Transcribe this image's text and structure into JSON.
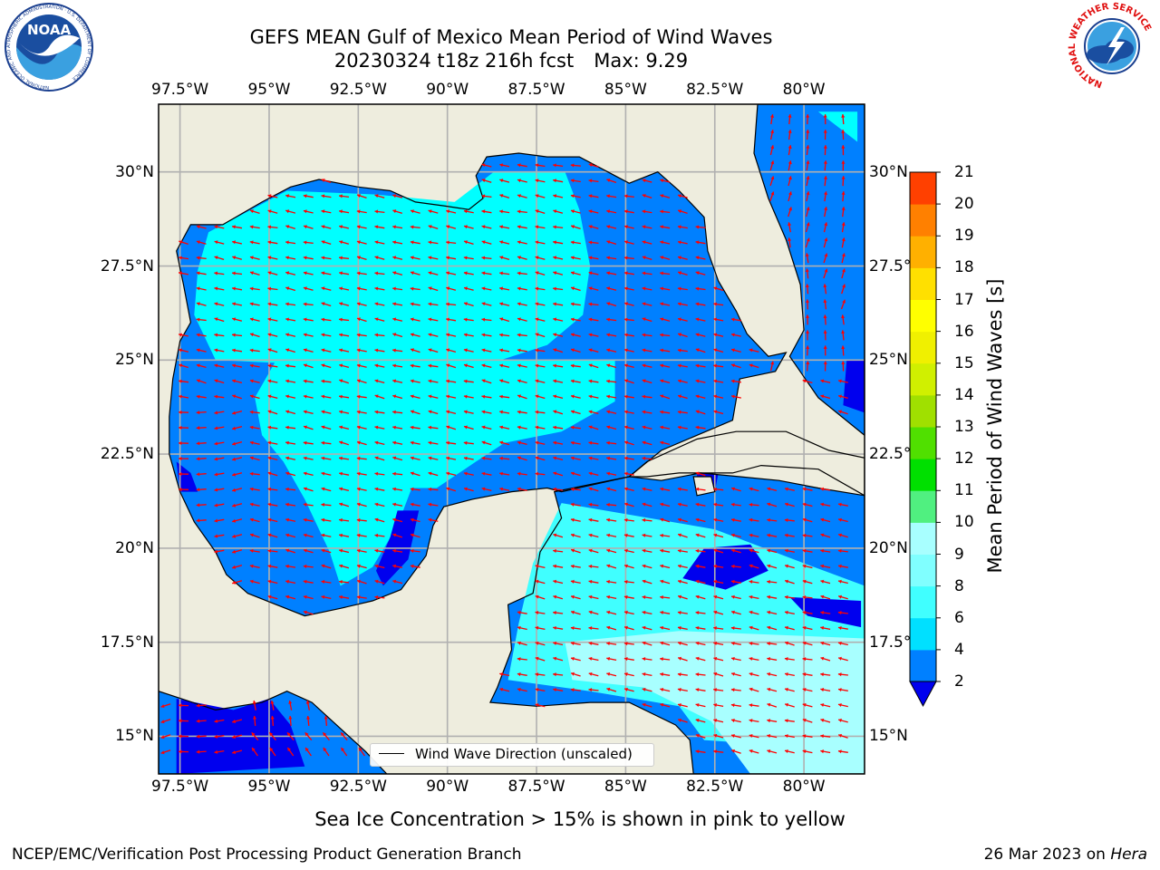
{
  "title": {
    "line1": "GEFS MEAN Gulf of Mexico Mean Period of Wind Waves",
    "line2_run": "20230324 t18z 216h fcst",
    "line2_max": "Max: 9.29"
  },
  "logos": {
    "left": {
      "name": "NOAA",
      "text": "NOAA",
      "ring_text": "NATIONAL OCEANIC AND ATMOSPHERIC ADMINISTRATION · U.S. DEPARTMENT OF COMMERCE"
    },
    "right": {
      "name": "National Weather Service",
      "ring_text": "NATIONAL WEATHER SERVICE"
    }
  },
  "map": {
    "longitude_ticks": [
      "97.5°W",
      "95°W",
      "92.5°W",
      "90°W",
      "87.5°W",
      "85°W",
      "82.5°W",
      "80°W"
    ],
    "latitude_ticks_left": [
      "30°N",
      "27.5°N",
      "25°N",
      "22.5°N",
      "20°N",
      "17.5°N",
      "15°N"
    ],
    "latitude_ticks_right": [
      "30°N",
      "27.5°N",
      "25°N",
      "22.5°N",
      "20°N",
      "17.5°N",
      "15°N"
    ],
    "legend_label": "Wind Wave Direction (unscaled)",
    "extent": {
      "lon_min": -98.1,
      "lon_max": -78.3,
      "lat_min": 14.0,
      "lat_max": 31.8
    },
    "colors": {
      "land": "#eeedde",
      "coast": "#000000",
      "grid": "#b0b0b0",
      "arrow": "#ff0000"
    }
  },
  "colorbar": {
    "label": "Mean Period of Wind Waves [s]",
    "levels": [
      "2",
      "4",
      "6",
      "8",
      "9",
      "10",
      "11",
      "12",
      "13",
      "14",
      "15",
      "16",
      "17",
      "18",
      "19",
      "20",
      "21"
    ],
    "colors": [
      "#0080ff",
      "#00e0ff",
      "#40ffff",
      "#80ffff",
      "#a8ffff",
      "#50f080",
      "#00e000",
      "#50e000",
      "#a0e000",
      "#d0f000",
      "#f0f000",
      "#ffff00",
      "#ffe000",
      "#ffb000",
      "#ff8000",
      "#ff4000",
      "#ff0000"
    ],
    "under_color": "#0000ee"
  },
  "ice_note": "Sea Ice Concentration > 15% is shown in pink to yellow",
  "footer": {
    "org": "NCEP/EMC/Verification Post Processing Product Generation Branch",
    "date": "26 Mar 2023 on ",
    "machine": "Hera"
  }
}
